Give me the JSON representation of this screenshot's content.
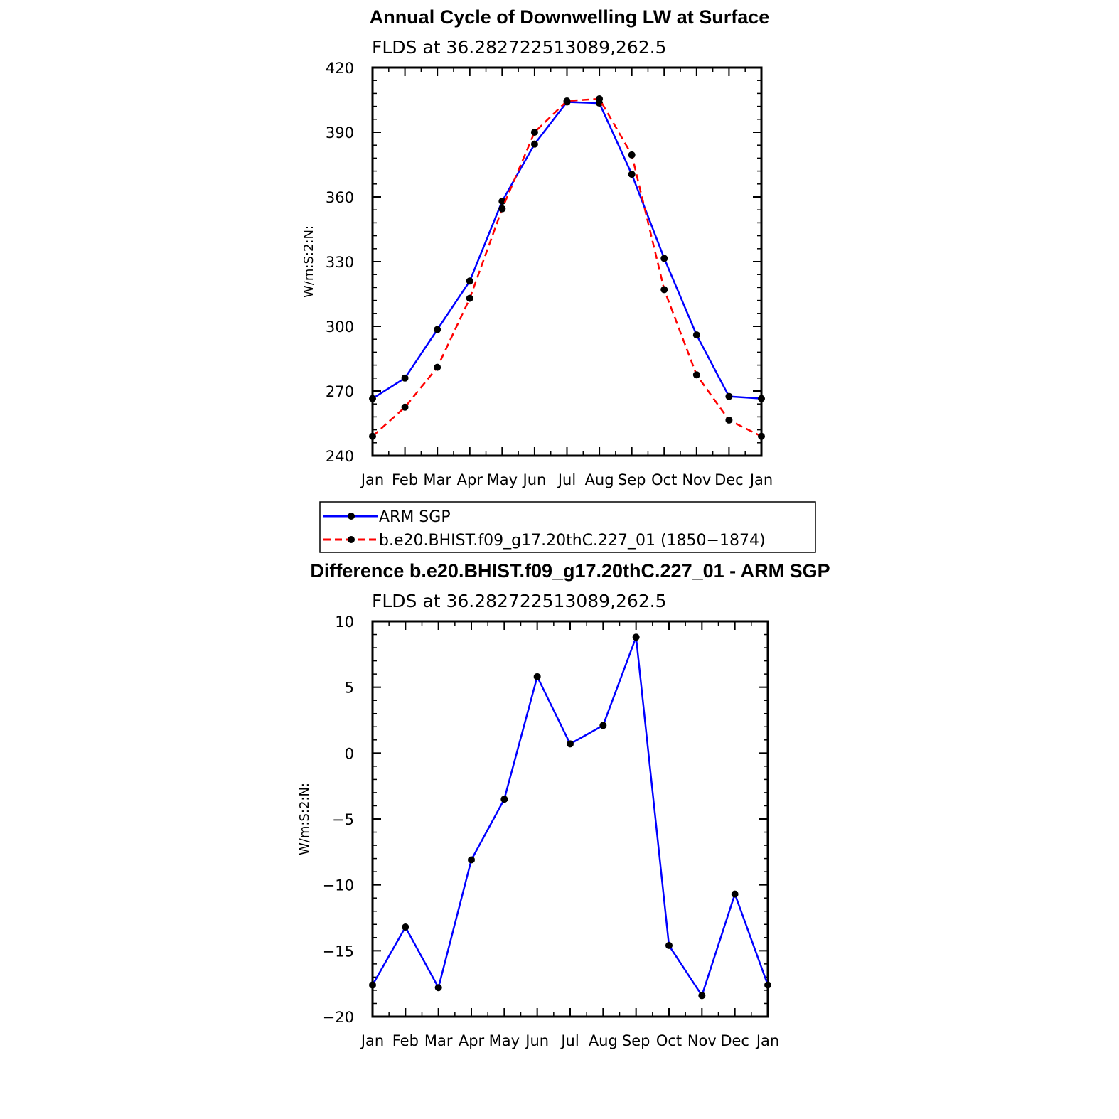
{
  "colors": {
    "obs": "#0000ff",
    "model": "#ff0000",
    "diff": "#0000ff",
    "marker": "#000000",
    "axes": "#000000",
    "background": "#ffffff"
  },
  "legend": {
    "entries": [
      "ARM SGP",
      "b.e20.BHIST.f09_g17.20thC.227_01 (1850−1874)"
    ]
  },
  "chart_data": [
    {
      "type": "line",
      "title": "Annual Cycle of Downwelling LW at Surface",
      "subtitle": "FLDS at 36.282722513089,262.5",
      "xlabel": "",
      "ylabel": "W/m:S:2:N:",
      "categories": [
        "Jan",
        "Feb",
        "Mar",
        "Apr",
        "May",
        "Jun",
        "Jul",
        "Aug",
        "Sep",
        "Oct",
        "Nov",
        "Dec",
        "Jan"
      ],
      "ylim": [
        240,
        420
      ],
      "yticks": [
        240,
        270,
        300,
        330,
        360,
        390,
        420
      ],
      "ytick_labels": [
        "240",
        "270",
        "300",
        "330",
        "360",
        "390",
        "420"
      ],
      "grid": false,
      "legend_position": "below",
      "series": [
        {
          "name": "ARM SGP",
          "style": "solid",
          "values": [
            266.5,
            276.0,
            298.5,
            321.0,
            358.0,
            384.5,
            404.0,
            403.5,
            370.5,
            331.5,
            296.0,
            267.5,
            266.5
          ]
        },
        {
          "name": "b.e20.BHIST.f09_g17.20thC.227_01 (1850−1874)",
          "style": "dashed",
          "values": [
            249.0,
            262.5,
            281.0,
            313.0,
            354.5,
            390.0,
            404.5,
            405.5,
            379.5,
            317.0,
            277.5,
            256.5,
            249.0
          ]
        }
      ]
    },
    {
      "type": "line",
      "title": "Difference b.e20.BHIST.f09_g17.20thC.227_01 - ARM SGP",
      "subtitle": "FLDS at 36.282722513089,262.5",
      "xlabel": "",
      "ylabel": "W/m:S:2:N:",
      "categories": [
        "Jan",
        "Feb",
        "Mar",
        "Apr",
        "May",
        "Jun",
        "Jul",
        "Aug",
        "Sep",
        "Oct",
        "Nov",
        "Dec",
        "Jan"
      ],
      "ylim": [
        -20,
        10
      ],
      "yticks": [
        -20,
        -15,
        -10,
        -5,
        0,
        5,
        10
      ],
      "ytick_labels": [
        "−20",
        "−15",
        "−10",
        "−5",
        "0",
        "5",
        "10"
      ],
      "grid": false,
      "series": [
        {
          "values": [
            -17.6,
            -13.2,
            -17.8,
            -8.1,
            -3.5,
            5.8,
            0.7,
            2.1,
            8.8,
            -14.6,
            -18.4,
            -10.7,
            -17.6
          ]
        }
      ]
    }
  ]
}
